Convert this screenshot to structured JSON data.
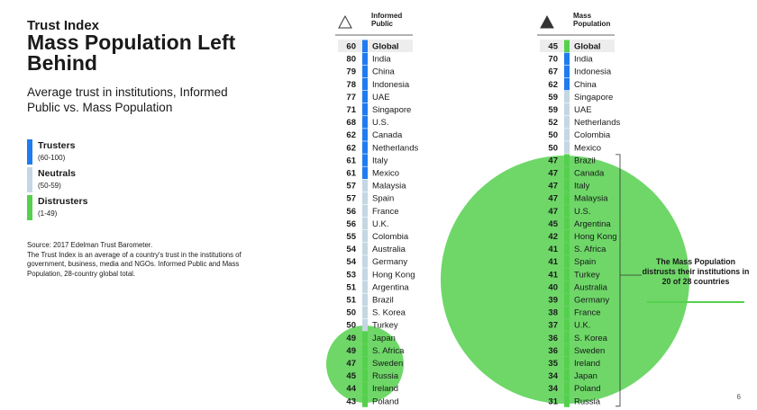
{
  "header": {
    "kicker": "Trust Index",
    "title": "Mass Population Left Behind",
    "subtitle": "Average trust in institutions, Informed Public vs. Mass Population"
  },
  "legend": [
    {
      "label": "Trusters",
      "range": "(60-100)",
      "color": "#1f7cf0"
    },
    {
      "label": "Neutrals",
      "range": "(50-59)",
      "color": "#c4d7e3"
    },
    {
      "label": "Distrusters",
      "range": "(1-49)",
      "color": "#55d04e"
    }
  ],
  "source_note": "Source: 2017 Edelman Trust Barometer.\nThe Trust Index is an average of a country's trust in the institutions of government, business, media and NGOs. Informed Public and Mass Population, 28-country global total.",
  "callout": "The Mass Population distrusts their institutions in 20 of 28 countries",
  "page_number": "6",
  "chart_data": [
    {
      "type": "table",
      "name": "Informed Public",
      "rows": [
        {
          "label": "Global",
          "value": 60
        },
        {
          "label": "India",
          "value": 80
        },
        {
          "label": "China",
          "value": 79
        },
        {
          "label": "Indonesia",
          "value": 78
        },
        {
          "label": "UAE",
          "value": 77
        },
        {
          "label": "Singapore",
          "value": 71
        },
        {
          "label": "U.S.",
          "value": 68
        },
        {
          "label": "Canada",
          "value": 62
        },
        {
          "label": "Netherlands",
          "value": 62
        },
        {
          "label": "Italy",
          "value": 61
        },
        {
          "label": "Mexico",
          "value": 61
        },
        {
          "label": "Malaysia",
          "value": 57
        },
        {
          "label": "Spain",
          "value": 57
        },
        {
          "label": "France",
          "value": 56
        },
        {
          "label": "U.K.",
          "value": 56
        },
        {
          "label": "Colombia",
          "value": 55
        },
        {
          "label": "Australia",
          "value": 54
        },
        {
          "label": "Germany",
          "value": 54
        },
        {
          "label": "Hong Kong",
          "value": 53
        },
        {
          "label": "Argentina",
          "value": 51
        },
        {
          "label": "Brazil",
          "value": 51
        },
        {
          "label": "S. Korea",
          "value": 50
        },
        {
          "label": "Turkey",
          "value": 50
        },
        {
          "label": "Japan",
          "value": 49
        },
        {
          "label": "S. Africa",
          "value": 49
        },
        {
          "label": "Sweden",
          "value": 47
        },
        {
          "label": "Russia",
          "value": 45
        },
        {
          "label": "Ireland",
          "value": 44
        },
        {
          "label": "Poland",
          "value": 43
        }
      ]
    },
    {
      "type": "table",
      "name": "Mass Population",
      "rows": [
        {
          "label": "Global",
          "value": 45
        },
        {
          "label": "India",
          "value": 70
        },
        {
          "label": "Indonesia",
          "value": 67
        },
        {
          "label": "China",
          "value": 62
        },
        {
          "label": "Singapore",
          "value": 59
        },
        {
          "label": "UAE",
          "value": 59
        },
        {
          "label": "Netherlands",
          "value": 52
        },
        {
          "label": "Colombia",
          "value": 50
        },
        {
          "label": "Mexico",
          "value": 50
        },
        {
          "label": "Brazil",
          "value": 47
        },
        {
          "label": "Canada",
          "value": 47
        },
        {
          "label": "Italy",
          "value": 47
        },
        {
          "label": "Malaysia",
          "value": 47
        },
        {
          "label": "U.S.",
          "value": 47
        },
        {
          "label": "Argentina",
          "value": 45
        },
        {
          "label": "Hong Kong",
          "value": 42
        },
        {
          "label": "S. Africa",
          "value": 41
        },
        {
          "label": "Spain",
          "value": 41
        },
        {
          "label": "Turkey",
          "value": 41
        },
        {
          "label": "Australia",
          "value": 40
        },
        {
          "label": "Germany",
          "value": 39
        },
        {
          "label": "France",
          "value": 38
        },
        {
          "label": "U.K.",
          "value": 37
        },
        {
          "label": "S. Korea",
          "value": 36
        },
        {
          "label": "Sweden",
          "value": 36
        },
        {
          "label": "Ireland",
          "value": 35
        },
        {
          "label": "Japan",
          "value": 34
        },
        {
          "label": "Poland",
          "value": 34
        },
        {
          "label": "Russia",
          "value": 31
        }
      ]
    }
  ]
}
